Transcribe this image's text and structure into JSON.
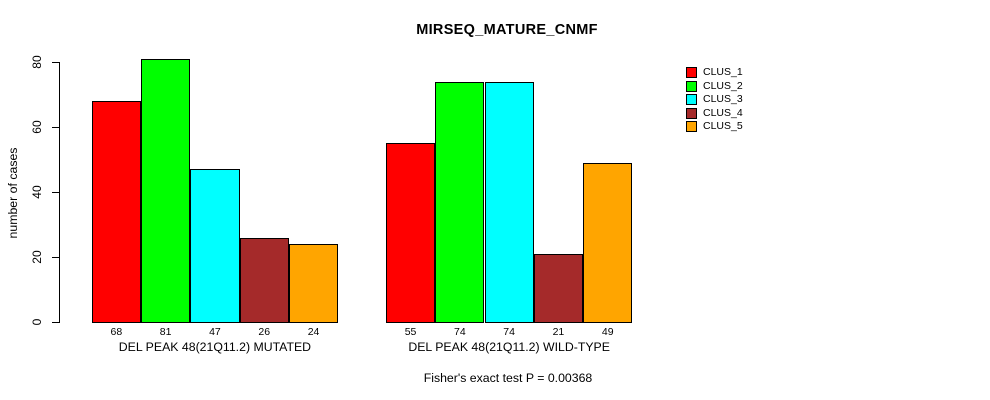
{
  "chart_data": {
    "type": "bar",
    "title": "MIRSEQ_MATURE_CNMF",
    "ylabel": "number of cases",
    "xlabel": "",
    "ylim": [
      0,
      80
    ],
    "yticks": [
      0,
      20,
      40,
      60,
      80
    ],
    "grid": false,
    "legend_position": "right",
    "background": "#FFFFFF",
    "bar_border_color": "#000000",
    "legend": [
      {
        "label": "CLUS_1",
        "color": "#FF0000"
      },
      {
        "label": "CLUS_2",
        "color": "#00FF00"
      },
      {
        "label": "CLUS_3",
        "color": "#00FFFF"
      },
      {
        "label": "CLUS_4",
        "color": "#A52A2A"
      },
      {
        "label": "CLUS_5",
        "color": "#FFA500"
      }
    ],
    "categories": [
      "CLUS_1",
      "CLUS_2",
      "CLUS_3",
      "CLUS_4",
      "CLUS_5"
    ],
    "groups": [
      {
        "label": "DEL PEAK 48(21Q11.2) MUTATED",
        "values": [
          68,
          81,
          47,
          26,
          24
        ]
      },
      {
        "label": "DEL PEAK 48(21Q11.2) WILD-TYPE",
        "values": [
          55,
          74,
          74,
          21,
          49
        ]
      }
    ],
    "caption": "Fisher's exact test P = 0.00368"
  }
}
